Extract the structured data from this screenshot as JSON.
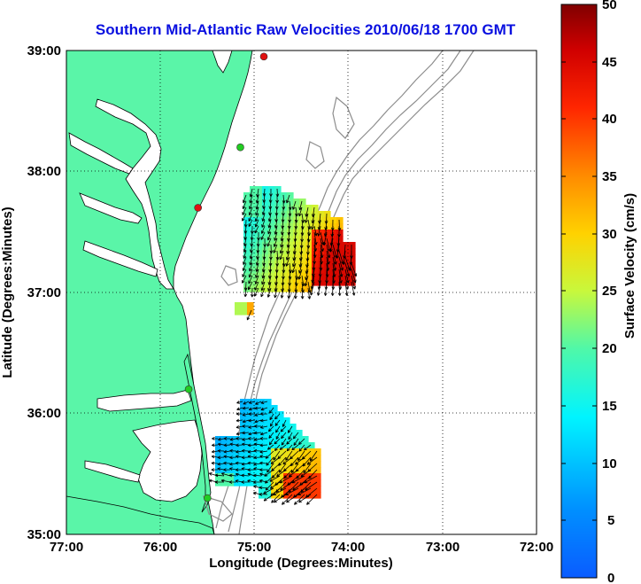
{
  "title": "Southern Mid-Atlantic Raw Velocities 2010/06/18 1700 GMT",
  "map": {
    "x_label": "Longitude (Degrees:Minutes)",
    "y_label": "Latitude (Degrees:Minutes)",
    "x_ticks": [
      "77:00",
      "76:00",
      "75:00",
      "74:00",
      "73:00",
      "72:00"
    ],
    "y_ticks": [
      "39:00",
      "38:00",
      "37:00",
      "36:00",
      "35:00"
    ],
    "lon_range": [
      -77,
      -72
    ],
    "lat_range": [
      35,
      39
    ],
    "land_color": "#5af5a8",
    "grid": "dotted"
  },
  "colorbar": {
    "label": "Surface Velocity (cm/s)",
    "range": [
      0,
      50
    ],
    "ticks": [
      "0",
      "5",
      "10",
      "15",
      "20",
      "25",
      "30",
      "35",
      "40",
      "45",
      "50"
    ],
    "colormap": "jet"
  },
  "stations": [
    {
      "lon": -74.9,
      "lat": 38.95,
      "color": "#e01010"
    },
    {
      "lon": -75.15,
      "lat": 38.2,
      "color": "#22cc22"
    },
    {
      "lon": -75.6,
      "lat": 37.7,
      "color": "#e01010"
    },
    {
      "lon": -75.7,
      "lat": 36.2,
      "color": "#22cc22"
    },
    {
      "lon": -75.5,
      "lat": 35.3,
      "color": "#22cc22"
    }
  ],
  "fields": {
    "north_min_speed": 12,
    "north_max_speed": 45,
    "south_min_speed": 6,
    "south_max_speed": 40
  }
}
